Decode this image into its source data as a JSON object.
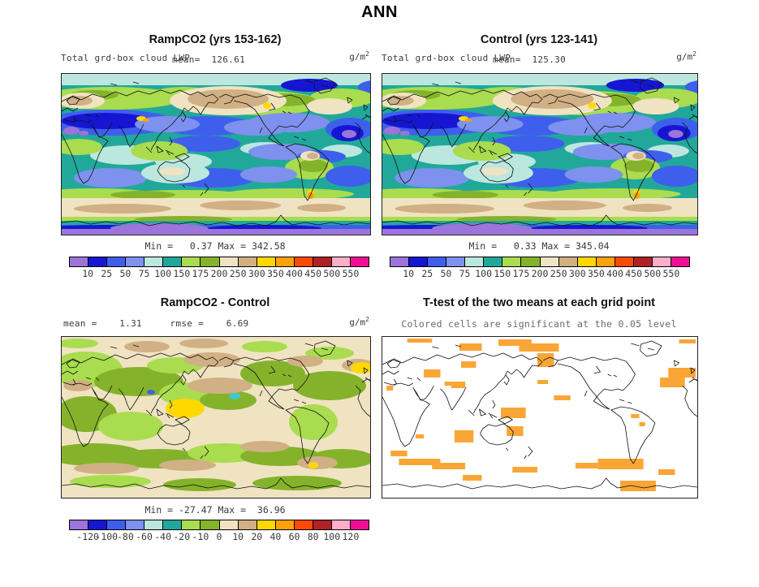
{
  "title": "ANN",
  "units": {
    "base": "g/m",
    "exp": "2"
  },
  "panels": {
    "ramp": {
      "title": "RampCO2 (yrs 153-162)",
      "field": "Total grd-box cloud LWP",
      "mean": "mean=  126.61",
      "minmax": "Min =   0.37 Max = 342.58"
    },
    "control": {
      "title": "Control (yrs 123-141)",
      "field": "Total grd-box cloud LWP",
      "mean": "mean=  125.30",
      "minmax": "Min =   0.33 Max = 345.04"
    },
    "diff": {
      "title": "RampCO2 - Control",
      "stats": "mean =    1.31     rmse =    6.69",
      "minmax": "Min = -27.47 Max =  36.96"
    },
    "ttest": {
      "title": "T-test of the two means at each grid point",
      "subtitle": "Colored cells are significant at the 0.05 level",
      "significant_color": "#F9A636"
    }
  },
  "colorbars": {
    "palette": [
      "#9C74DB",
      "#1616D2",
      "#3E5FEC",
      "#7E91EE",
      "#BCE7DE",
      "#22A89A",
      "#A9DC4F",
      "#84B32B",
      "#F0E3C2",
      "#D0B084",
      "#FFD800",
      "#FFA10A",
      "#FC4A06",
      "#AE2226",
      "#FFAEC9",
      "#F20D96"
    ],
    "top_ticks": [
      "10",
      "25",
      "50",
      "75",
      "100",
      "150",
      "175",
      "200",
      "250",
      "300",
      "350",
      "400",
      "450",
      "500",
      "550"
    ],
    "diff_ticks": [
      "-120",
      "-100",
      "-80",
      "-60",
      "-40",
      "-20",
      "-10",
      "0",
      "10",
      "20",
      "40",
      "60",
      "80",
      "100",
      "120"
    ]
  },
  "chart_data": {
    "type": "heatmap",
    "figure": "Four-panel annual-mean global map comparison",
    "season": "ANN",
    "variable": "Total grd-box cloud LWP",
    "units": "g/m^2",
    "panels": [
      {
        "name": "RampCO2 (yrs 153-162)",
        "mean": 126.61,
        "min": 0.37,
        "max": 342.58,
        "contour_levels": [
          10,
          25,
          50,
          75,
          100,
          150,
          175,
          200,
          250,
          300,
          350,
          400,
          450,
          500,
          550
        ]
      },
      {
        "name": "Control (yrs 123-141)",
        "mean": 125.3,
        "min": 0.33,
        "max": 345.04,
        "contour_levels": [
          10,
          25,
          50,
          75,
          100,
          150,
          175,
          200,
          250,
          300,
          350,
          400,
          450,
          500,
          550
        ]
      },
      {
        "name": "RampCO2 - Control",
        "mean": 1.31,
        "rmse": 6.69,
        "min": -27.47,
        "max": 36.96,
        "contour_levels": [
          -120,
          -100,
          -80,
          -60,
          -40,
          -20,
          -10,
          0,
          10,
          20,
          40,
          60,
          80,
          100,
          120
        ]
      },
      {
        "name": "T-test of the two means at each grid point",
        "note": "Colored cells are significant at the 0.05 level",
        "significance_level": 0.05
      }
    ],
    "legend_position": "below each map",
    "projection": "equirectangular, Pacific-centered"
  }
}
